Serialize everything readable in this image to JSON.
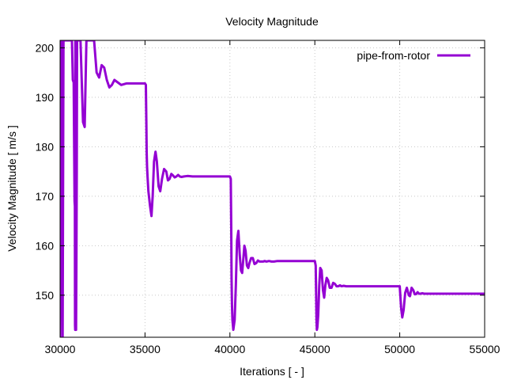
{
  "chart_data": {
    "type": "line",
    "title": "Velocity Magnitude",
    "xlabel": "Iterations [ - ]",
    "ylabel": "Velocity Magnitude [ m/s ]",
    "xlim": [
      30000,
      55000
    ],
    "ylim": [
      141.5,
      201.5
    ],
    "xticks": [
      30000,
      35000,
      40000,
      45000,
      50000,
      55000
    ],
    "yticks": [
      150,
      160,
      170,
      180,
      190,
      200
    ],
    "grid": true,
    "legend_position": "top-right",
    "series": [
      {
        "name": "pipe-from-rotor",
        "color": "#9400D3",
        "x": [
          30000,
          30050,
          30100,
          30150,
          30200,
          30300,
          30450,
          30550,
          30650,
          30700,
          30750,
          30800,
          30850,
          30870,
          30880,
          30890,
          30900,
          30910,
          30920,
          30940,
          30960,
          30980,
          31000,
          31050,
          31100,
          31200,
          31350,
          31450,
          31550,
          31650,
          31800,
          32000,
          32150,
          32300,
          32450,
          32600,
          32750,
          32900,
          33050,
          33200,
          33400,
          33600,
          33900,
          34200,
          34600,
          35000,
          35050,
          35080,
          35100,
          35120,
          35150,
          35200,
          35300,
          35380,
          35450,
          35530,
          35620,
          35700,
          35800,
          35900,
          36000,
          36120,
          36250,
          36350,
          36450,
          36550,
          36650,
          36750,
          36850,
          36950,
          37050,
          37150,
          37300,
          37500,
          37800,
          38200,
          38700,
          39200,
          39600,
          40000,
          40050,
          40080,
          40100,
          40120,
          40150,
          40200,
          40280,
          40350,
          40420,
          40500,
          40580,
          40650,
          40720,
          40780,
          40850,
          40920,
          41000,
          41080,
          41150,
          41250,
          41350,
          41450,
          41550,
          41650,
          41750,
          41850,
          41950,
          42050,
          42150,
          42300,
          42450,
          42600,
          42800,
          43200,
          43700,
          44300,
          44800,
          45000,
          45050,
          45080,
          45100,
          45120,
          45150,
          45200,
          45260,
          45320,
          45400,
          45480,
          45550,
          45620,
          45700,
          45780,
          45880,
          45980,
          46080,
          46180,
          46280,
          46380,
          46480,
          46580,
          46700,
          46850,
          47000,
          47200,
          47500,
          48000,
          48600,
          49200,
          49700,
          50000,
          50080,
          50150,
          50230,
          50320,
          50420,
          50530,
          50600,
          50700,
          50800,
          50880,
          50960,
          51050,
          51130,
          51230,
          51330,
          51430,
          51550,
          51700,
          51850,
          52000,
          52200,
          52500,
          53000,
          53500,
          54000,
          54500,
          55000
        ],
        "values": [
          140,
          201.5,
          201.5,
          140,
          201.5,
          201.5,
          201.5,
          201.5,
          201.5,
          201.5,
          193.5,
          193,
          169,
          168,
          144,
          143,
          201.5,
          201.5,
          201.5,
          143,
          155,
          175,
          201.5,
          201.5,
          201.5,
          201.5,
          185,
          184,
          201.5,
          201.5,
          201.5,
          201.5,
          195,
          194,
          196.5,
          196,
          193.5,
          192,
          192.5,
          193.5,
          193,
          192.5,
          192.8,
          192.8,
          192.8,
          192.8,
          192.5,
          185,
          179,
          176,
          174,
          171,
          168,
          166,
          170,
          177,
          179,
          177,
          172,
          171,
          173.5,
          175.5,
          175,
          173.2,
          173.5,
          174.5,
          174.2,
          173.8,
          174,
          174.3,
          174,
          173.9,
          174,
          174.1,
          174,
          174,
          174,
          174,
          174,
          174,
          173.5,
          163,
          153.5,
          148,
          145,
          143,
          145,
          152,
          161,
          163,
          158,
          155,
          154.5,
          157,
          160,
          159,
          156,
          155.5,
          156.5,
          157.5,
          157.5,
          156.3,
          156.5,
          157,
          156.8,
          156.8,
          156.8,
          156.9,
          156.8,
          156.9,
          156.8,
          156.8,
          156.9,
          156.9,
          156.9,
          156.9,
          156.9,
          156.9,
          156,
          150,
          145,
          143,
          143.5,
          146,
          152,
          155.5,
          155,
          151,
          149.5,
          152,
          153.5,
          153,
          151.5,
          151.5,
          152.5,
          152.3,
          151.8,
          151.8,
          152,
          151.8,
          151.9,
          151.8,
          151.8,
          151.8,
          151.8,
          151.8,
          151.8,
          151.8,
          151.8,
          151.8,
          147.5,
          145.5,
          147,
          150.5,
          151.5,
          150,
          149.8,
          151.5,
          151,
          150.2,
          150.2,
          150.6,
          150.3,
          150.3,
          150.4,
          150.3,
          150.3,
          150.3,
          150.3,
          150.3,
          150.3,
          150.3,
          150.3,
          150.3,
          150.3,
          150.3,
          150.3
        ]
      }
    ]
  }
}
